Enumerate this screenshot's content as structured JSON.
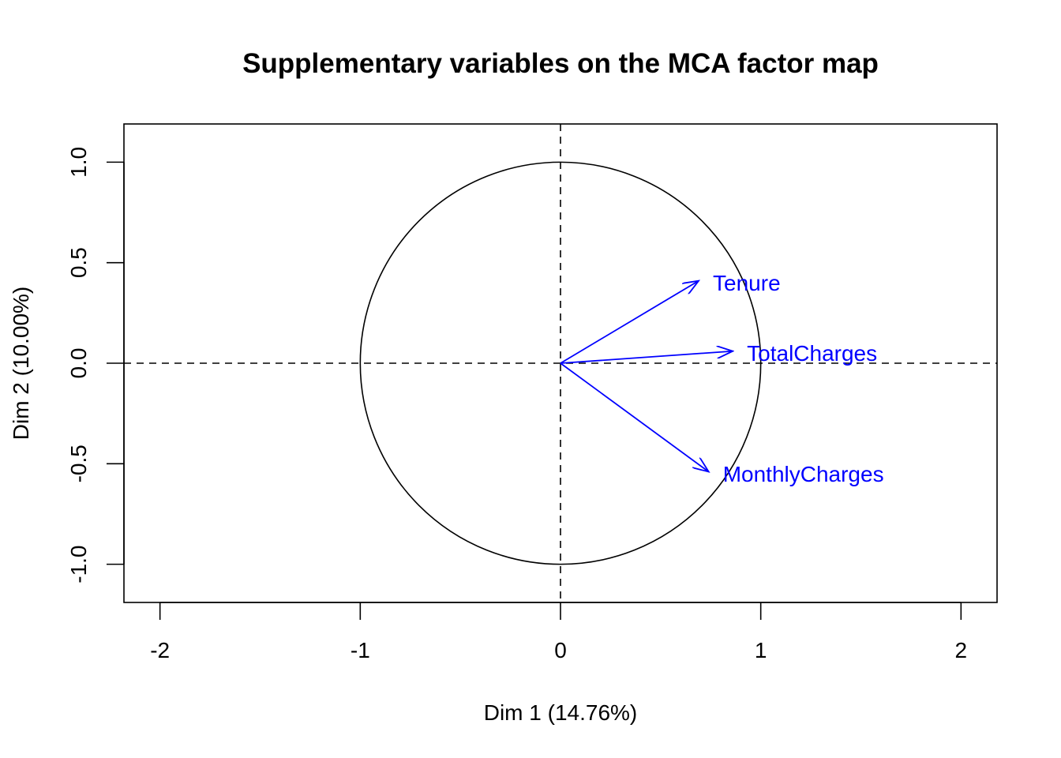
{
  "chart_data": {
    "type": "scatter",
    "subtype": "variable-correlation-circle",
    "title": "Supplementary variables on the MCA factor map",
    "xlabel": "Dim 1 (14.76%)",
    "ylabel": "Dim 2 (10.00%)",
    "xlim": [
      -2.18,
      2.18
    ],
    "ylim": [
      -1.19,
      1.19
    ],
    "x_ticks": [
      -2,
      -1,
      0,
      1,
      2
    ],
    "y_ticks": [
      -1.0,
      -0.5,
      0.0,
      0.5,
      1.0
    ],
    "x_tick_labels": [
      "-2",
      "-1",
      "0",
      "1",
      "2"
    ],
    "y_tick_labels": [
      "-1.0",
      "-0.5",
      "0.0",
      "0.5",
      "1.0"
    ],
    "unit_circle": true,
    "reference_lines": {
      "x": 0,
      "y": 0,
      "style": "dashed"
    },
    "arrow_color": "#0000FF",
    "axis_color": "#000000",
    "variables": [
      {
        "name": "Tenure",
        "x": 0.69,
        "y": 0.41
      },
      {
        "name": "TotalCharges",
        "x": 0.86,
        "y": 0.06
      },
      {
        "name": "MonthlyCharges",
        "x": 0.74,
        "y": -0.54
      }
    ]
  }
}
